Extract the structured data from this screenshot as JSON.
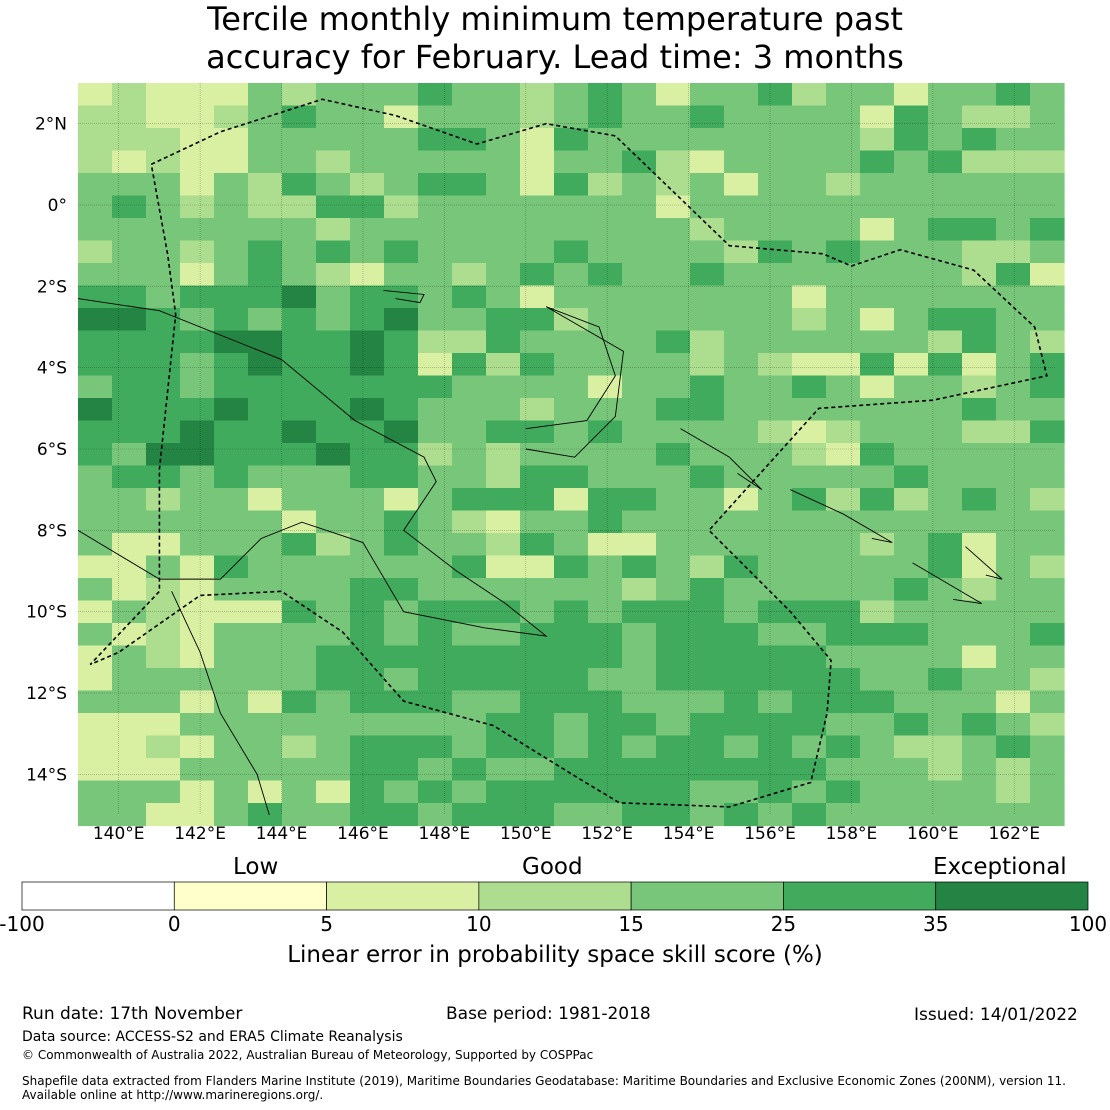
{
  "title_line1": "Tercile monthly minimum temperature past",
  "title_line2": "accuracy for February. Lead time: 3 months",
  "map": {
    "lon_ticks": [
      "140°E",
      "142°E",
      "144°E",
      "146°E",
      "148°E",
      "150°E",
      "152°E",
      "154°E",
      "156°E",
      "158°E",
      "160°E",
      "162°E"
    ],
    "lon_values": [
      140,
      142,
      144,
      146,
      148,
      150,
      152,
      154,
      156,
      158,
      160,
      162
    ],
    "lat_ticks": [
      "2°N",
      "0°",
      "2°S",
      "4°S",
      "6°S",
      "8°S",
      "10°S",
      "12°S",
      "14°S"
    ],
    "lat_values": [
      2,
      0,
      -2,
      -4,
      -6,
      -8,
      -10,
      -12,
      -14
    ],
    "lon_range": [
      139,
      163
    ],
    "lat_range": [
      -15,
      3
    ]
  },
  "legend": {
    "category_low": "Low",
    "category_good": "Good",
    "category_exceptional": "Exceptional",
    "boundaries": [
      "-100",
      "0",
      "5",
      "10",
      "15",
      "25",
      "35",
      "100"
    ],
    "colors": [
      "#ffffff",
      "#ffffcc",
      "#d9f0a3",
      "#addd8e",
      "#78c679",
      "#41ab5d",
      "#238443"
    ],
    "label": "Linear error in probability space skill score (%)"
  },
  "footer": {
    "run_date": "Run date: 17th November",
    "base_period": "Base period: 1981-2018",
    "issued": "Issued: 14/01/2022",
    "data_source": "Data source: ACCESS-S2 and ERA5 Climate Reanalysis",
    "copyright": "© Commonwealth of Australia 2022, Australian Bureau of Meteorology, Supported by COSPPac",
    "shapefile_line1": "Shapefile data extracted from Flanders Marine Institute (2019), Maritime Boundaries Geodatabase: Maritime Boundaries and Exclusive Economic Zones (200NM), version 11.",
    "shapefile_line2": "Available online at http://www.marineregions.org/."
  }
}
